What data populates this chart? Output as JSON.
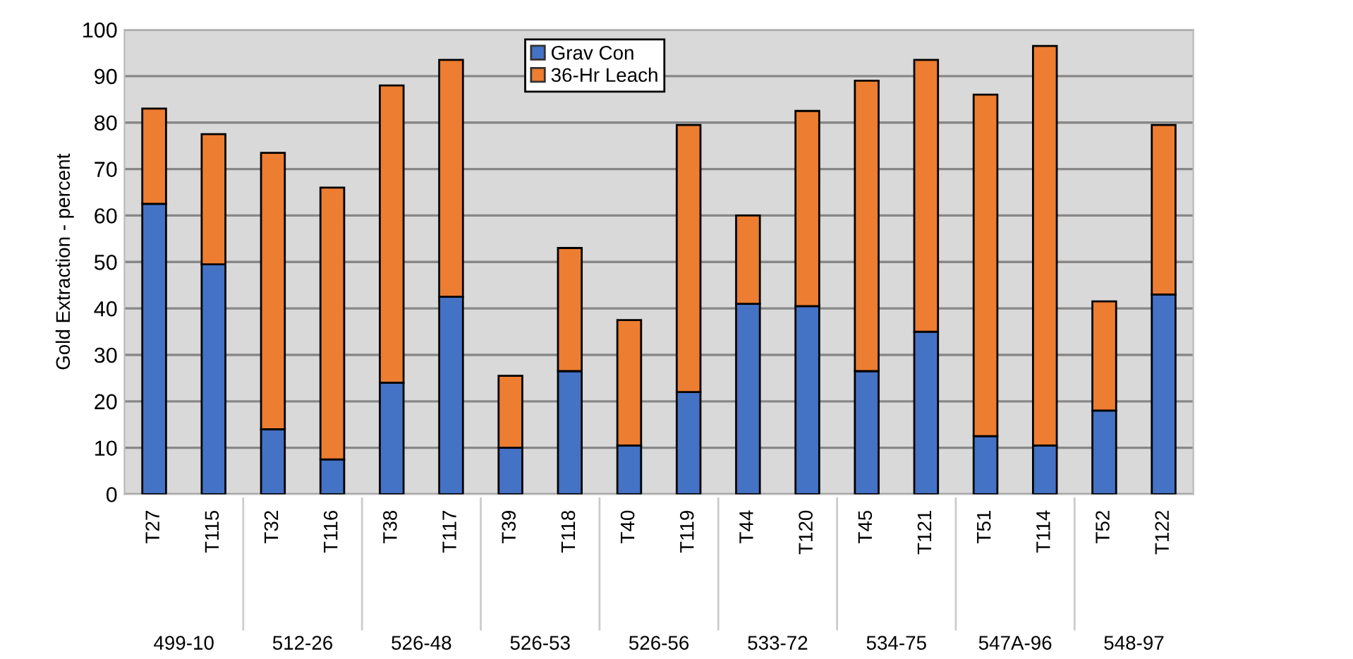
{
  "chart_data": {
    "type": "bar",
    "stacked": true,
    "ylabel": "Gold Extraction - percent",
    "categories": [
      "T27",
      "T115",
      "T32",
      "T116",
      "T38",
      "T117",
      "T39",
      "T118",
      "T40",
      "T119",
      "T44",
      "T120",
      "T45",
      "T121",
      "T51",
      "T114",
      "T52",
      "T122"
    ],
    "series": [
      {
        "name": "Grav Con",
        "color": "#4472c4",
        "values": [
          62.5,
          49.5,
          14,
          7.5,
          24,
          42.5,
          10,
          26.5,
          10.5,
          22,
          41,
          40.5,
          26.5,
          35,
          12.5,
          10.5,
          18,
          43
        ]
      },
      {
        "name": "36-Hr Leach",
        "color": "#ed7d31",
        "values": [
          20.5,
          28,
          59.5,
          58.5,
          64,
          51,
          15.5,
          26.5,
          27,
          57.5,
          19,
          42,
          62.5,
          58.5,
          73.5,
          86,
          23.5,
          36.5
        ]
      }
    ],
    "annotations": [
      "499-10",
      "512-26",
      "526-48",
      "526-53",
      "526-56",
      "533-72",
      "534-75",
      "547A-96",
      "548-97"
    ],
    "ylim": [
      0,
      100
    ],
    "yticks": [
      0,
      10,
      20,
      30,
      40,
      50,
      60,
      70,
      80,
      90,
      100
    ],
    "grid": "y",
    "legend": "top"
  }
}
